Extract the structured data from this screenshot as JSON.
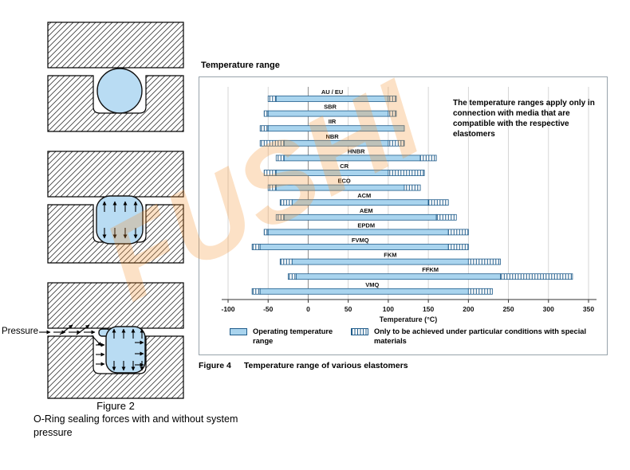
{
  "watermark": {
    "text": "FUSHI"
  },
  "figure2": {
    "pressure_label": "Pressure",
    "label": "Figure 2",
    "caption": "O-Ring sealing forces with and without system pressure"
  },
  "figure4": {
    "caption_label": "Figure 4",
    "caption_text": "Temperature range of various elastomers"
  },
  "chart_data": {
    "type": "bar",
    "orientation": "horizontal",
    "title": "Temperature range",
    "annotation": "The temperature ranges apply only in connection with media that are compatible with the respective elastomers",
    "xlabel": "Temperature (°C)",
    "xlim": [
      -100,
      350
    ],
    "xticks": [
      -100,
      -50,
      0,
      50,
      100,
      150,
      200,
      250,
      300,
      350
    ],
    "grid": true,
    "legend_position": "bottom",
    "legend": [
      "Operating temperature range",
      "Only to be achieved under particular conditions with special materials"
    ],
    "colors": {
      "bar_fill": "#a9d4ee",
      "bar_border": "#1f5c8b",
      "grid_line": "#cccccc",
      "zero_line": "#8f8f8f"
    },
    "categories": [
      "AU / EU",
      "SBR",
      "IIR",
      "NBR",
      "HNBR",
      "CR",
      "ECO",
      "ACM",
      "AEM",
      "EPDM",
      "FVMQ",
      "FKM",
      "FFKM",
      "VMQ"
    ],
    "bars": [
      {
        "label": "AU / EU",
        "special_min": -50,
        "main_min": -40,
        "main_max": 100,
        "special_max": 110
      },
      {
        "label": "SBR",
        "special_min": -55,
        "main_min": -50,
        "main_max": 100,
        "special_max": 110
      },
      {
        "label": "IIR",
        "special_min": -60,
        "main_min": -50,
        "main_max": 120,
        "special_max": null
      },
      {
        "label": "NBR",
        "special_min": -60,
        "main_min": -30,
        "main_max": 100,
        "special_max": 120
      },
      {
        "label": "HNBR",
        "special_min": -40,
        "main_min": -30,
        "main_max": 140,
        "special_max": 160
      },
      {
        "label": "CR",
        "special_min": -55,
        "main_min": -40,
        "main_max": 100,
        "special_max": 145
      },
      {
        "label": "ECO",
        "special_min": -50,
        "main_min": -40,
        "main_max": 120,
        "special_max": 140
      },
      {
        "label": "ACM",
        "special_min": -35,
        "main_min": -20,
        "main_max": 150,
        "special_max": 175
      },
      {
        "label": "AEM",
        "special_min": -40,
        "main_min": -30,
        "main_max": 160,
        "special_max": 185
      },
      {
        "label": "EPDM",
        "special_min": -55,
        "main_min": -50,
        "main_max": 175,
        "special_max": 200
      },
      {
        "label": "FVMQ",
        "special_min": -70,
        "main_min": -60,
        "main_max": 175,
        "special_max": 200
      },
      {
        "label": "FKM",
        "special_min": -35,
        "main_min": -20,
        "main_max": 200,
        "special_max": 240
      },
      {
        "label": "FFKM",
        "special_min": -25,
        "main_min": -15,
        "main_max": 240,
        "special_max": 330
      },
      {
        "label": "VMQ",
        "special_min": -70,
        "main_min": -60,
        "main_max": 200,
        "special_max": 230
      }
    ]
  }
}
